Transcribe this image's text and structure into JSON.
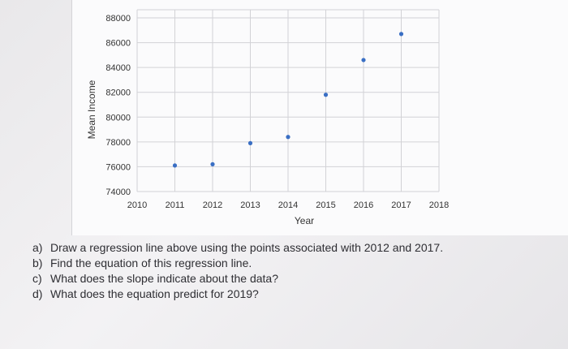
{
  "chart_data": {
    "type": "scatter",
    "title": "",
    "xlabel": "Year",
    "ylabel": "Mean Income",
    "x_ticks": [
      "2010",
      "2011",
      "2012",
      "2013",
      "2014",
      "2015",
      "2016",
      "2017",
      "2018"
    ],
    "y_ticks": [
      "74000",
      "76000",
      "78000",
      "80000",
      "82000",
      "84000",
      "86000",
      "88000"
    ],
    "xlim": [
      2010,
      2018
    ],
    "ylim": [
      74000,
      88000
    ],
    "grid": true,
    "legend": "none",
    "point_color": "#3a6fc4",
    "grid_color": "#d2d2d6",
    "points": [
      {
        "x": 2011,
        "y": 76100
      },
      {
        "x": 2012,
        "y": 76200
      },
      {
        "x": 2013,
        "y": 77900
      },
      {
        "x": 2014,
        "y": 78400
      },
      {
        "x": 2015,
        "y": 81800
      },
      {
        "x": 2016,
        "y": 84600
      },
      {
        "x": 2017,
        "y": 86700
      }
    ]
  },
  "questions": [
    {
      "letter": "a)",
      "text": "Draw a regression line above using the points associated with 2012 and 2017."
    },
    {
      "letter": "b)",
      "text": "Find the equation of this regression line."
    },
    {
      "letter": "c)",
      "text": "What does the slope indicate about the data?"
    },
    {
      "letter": "d)",
      "text": "What does the equation predict for 2019?"
    }
  ]
}
